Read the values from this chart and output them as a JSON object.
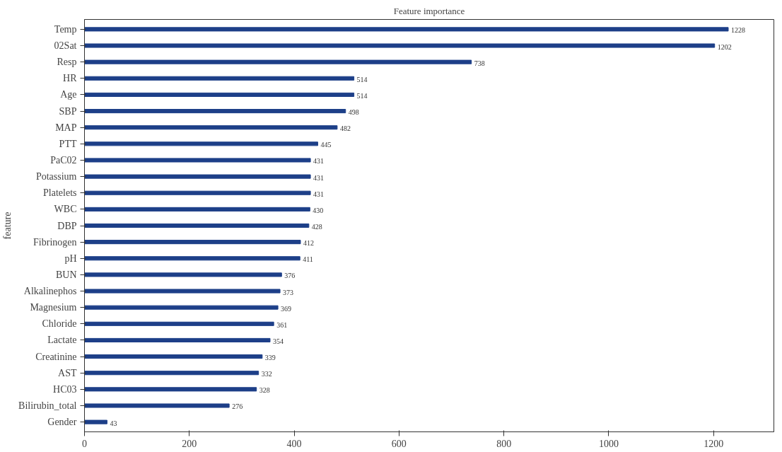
{
  "chart_data": {
    "type": "bar",
    "orientation": "horizontal",
    "title": "Feature importance",
    "ylabel": "feature",
    "categories": [
      "Temp",
      "02Sat",
      "Resp",
      "HR",
      "Age",
      "SBP",
      "MAP",
      "PTT",
      "PaC02",
      "Potassium",
      "Platelets",
      "WBC",
      "DBP",
      "Fibrinogen",
      "pH",
      "BUN",
      "Alkalinephos",
      "Magnesium",
      "Chloride",
      "Lactate",
      "Creatinine",
      "AST",
      "HC03",
      "Bilirubin_total",
      "Gender"
    ],
    "values": [
      1228,
      1202,
      738,
      514,
      514,
      498,
      482,
      445,
      431,
      431,
      431,
      430,
      428,
      412,
      411,
      376,
      373,
      369,
      361,
      354,
      339,
      332,
      328,
      276,
      43
    ],
    "color": "#1d3f88",
    "data_labels": true,
    "grid": false,
    "xlim": [
      0,
      1315
    ],
    "xticks": [
      0,
      200,
      400,
      600,
      800,
      1000,
      1200
    ]
  }
}
